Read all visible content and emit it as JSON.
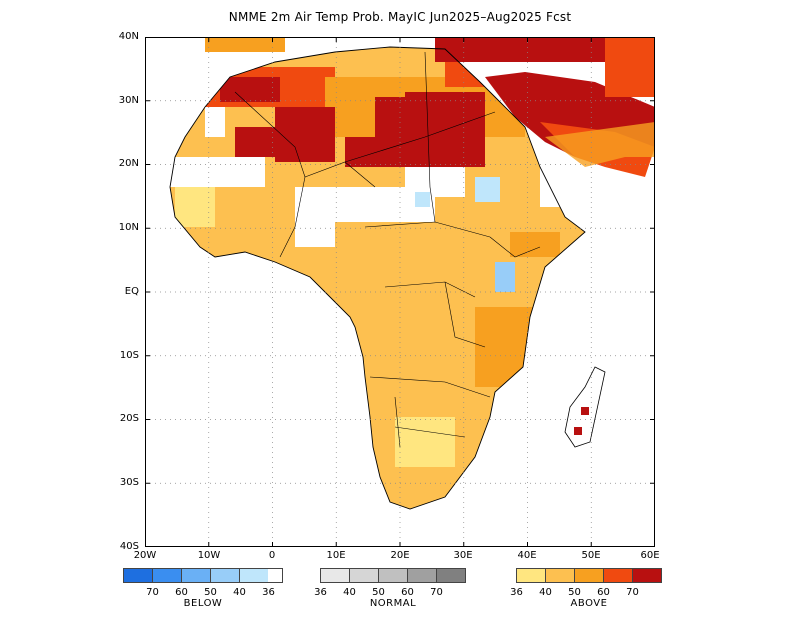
{
  "title": "NMME 2m Air Temp Prob. MayIC  Jun2025–Aug2025 Fcst",
  "y_labels": [
    "40N",
    "30N",
    "20N",
    "10N",
    "EQ",
    "10S",
    "20S",
    "30S",
    "40S"
  ],
  "x_labels": [
    "20W",
    "10W",
    "0",
    "10E",
    "20E",
    "30E",
    "40E",
    "50E",
    "60E"
  ],
  "map": {
    "lon_range": [
      -20,
      60
    ],
    "lat_range": [
      -40,
      40
    ],
    "gridlines": "dotted every 10 degrees",
    "regions": [
      {
        "name": "north-africa-mediterranean",
        "category": "above",
        "level": "70"
      },
      {
        "name": "sahara-central",
        "category": "above",
        "level": "60-70"
      },
      {
        "name": "sahel",
        "category": "above",
        "level": "40-50"
      },
      {
        "name": "west-africa-coast",
        "category": "above",
        "level": "40-50"
      },
      {
        "name": "central-africa",
        "category": "above",
        "level": "40-50"
      },
      {
        "name": "east-africa",
        "category": "above",
        "level": "40-60"
      },
      {
        "name": "southern-africa",
        "category": "above",
        "level": "40-50"
      },
      {
        "name": "arabian-peninsula",
        "category": "above",
        "level": "60-70"
      },
      {
        "name": "sudan-ethiopia",
        "category": "below",
        "level": "36-40"
      },
      {
        "name": "lake-victoria",
        "category": "below",
        "level": "36-40"
      }
    ]
  },
  "legend": {
    "below": {
      "caption": "BELOW",
      "labels": [
        "70",
        "60",
        "50",
        "40",
        "36"
      ],
      "colors": [
        "#1e6fe0",
        "#3a8ef0",
        "#6ab0f5",
        "#98cdf8",
        "#bfe6fb"
      ]
    },
    "normal": {
      "caption": "NORMAL",
      "labels": [
        "36",
        "40",
        "50",
        "60",
        "70"
      ],
      "colors": [
        "#e8e8e8",
        "#d6d6d6",
        "#c0c0c0",
        "#a0a0a0",
        "#808080"
      ]
    },
    "above": {
      "caption": "ABOVE",
      "labels": [
        "36",
        "40",
        "50",
        "60",
        "70"
      ],
      "colors": [
        "#ffe680",
        "#fdc050",
        "#f7a020",
        "#f04a10",
        "#b81010"
      ]
    }
  }
}
